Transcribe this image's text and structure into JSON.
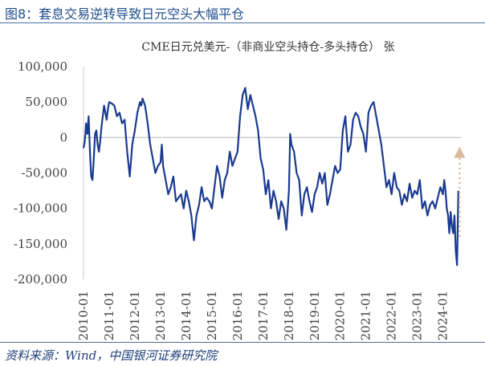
{
  "figure": {
    "title": "图8：套息交易逆转导致日元空头大幅平仓",
    "source": "资料来源：Wind，中国银河证券研究院"
  },
  "chart_data": {
    "type": "line",
    "title": "CME日元兑美元-（非商业空头持仓-多头持仓） 张",
    "ylim": [
      -200000,
      100000
    ],
    "yticks": [
      100000,
      50000,
      0,
      -50000,
      -100000,
      -150000,
      -200000
    ],
    "ytick_labels": [
      "100,000",
      "50,000",
      "0",
      "-50,000",
      "-100,000",
      "-150,000",
      "-200,000"
    ],
    "xlim": [
      2010.0,
      2024.7
    ],
    "xticks": [
      2010,
      2011,
      2012,
      2013,
      2014,
      2015,
      2016,
      2017,
      2018,
      2019,
      2020,
      2021,
      2022,
      2023,
      2024
    ],
    "xtick_labels": [
      "2010-01",
      "2011-01",
      "2012-01",
      "2013-01",
      "2014-01",
      "2015-01",
      "2016-01",
      "2017-01",
      "2018-01",
      "2019-01",
      "2020-01",
      "2021-01",
      "2022-01",
      "2023-01",
      "2024-01"
    ],
    "grid": false,
    "line_color": "#1a3a8f",
    "zero_line_color": "#bbbbbb",
    "arrow_color": "#d9b99b",
    "arrow_annotation": {
      "x": 2024.65,
      "from_y": -140000,
      "to_y": -15000
    },
    "series": [
      {
        "x": [
          2010.0,
          2010.05,
          2010.1,
          2010.15,
          2010.2,
          2010.25,
          2010.3,
          2010.35,
          2010.4,
          2010.45,
          2010.5,
          2010.55,
          2010.6,
          2010.65,
          2010.7,
          2010.75,
          2010.8,
          2010.85,
          2010.9,
          2010.95,
          2011.0,
          2011.1,
          2011.2,
          2011.3,
          2011.4,
          2011.5,
          2011.6,
          2011.7,
          2011.8,
          2011.9,
          2012.0,
          2012.1,
          2012.2,
          2012.25,
          2012.3,
          2012.4,
          2012.5,
          2012.6,
          2012.7,
          2012.8,
          2012.9,
          2013.0,
          2013.05,
          2013.1,
          2013.2,
          2013.3,
          2013.4,
          2013.5,
          2013.6,
          2013.7,
          2013.8,
          2013.9,
          2014.0,
          2014.1,
          2014.2,
          2014.3,
          2014.4,
          2014.5,
          2014.6,
          2014.7,
          2014.8,
          2014.9,
          2015.0,
          2015.1,
          2015.2,
          2015.3,
          2015.4,
          2015.5,
          2015.6,
          2015.7,
          2015.8,
          2015.9,
          2016.0,
          2016.1,
          2016.2,
          2016.3,
          2016.4,
          2016.5,
          2016.6,
          2016.7,
          2016.8,
          2016.9,
          2017.0,
          2017.1,
          2017.2,
          2017.3,
          2017.4,
          2017.5,
          2017.6,
          2017.7,
          2017.8,
          2017.9,
          2018.0,
          2018.05,
          2018.1,
          2018.2,
          2018.3,
          2018.4,
          2018.5,
          2018.6,
          2018.7,
          2018.8,
          2018.9,
          2019.0,
          2019.1,
          2019.2,
          2019.3,
          2019.4,
          2019.5,
          2019.6,
          2019.7,
          2019.8,
          2019.9,
          2020.0,
          2020.1,
          2020.2,
          2020.3,
          2020.4,
          2020.5,
          2020.6,
          2020.7,
          2020.8,
          2020.9,
          2021.0,
          2021.1,
          2021.2,
          2021.3,
          2021.4,
          2021.5,
          2021.6,
          2021.7,
          2021.8,
          2021.9,
          2022.0,
          2022.1,
          2022.2,
          2022.3,
          2022.4,
          2022.5,
          2022.6,
          2022.7,
          2022.8,
          2022.9,
          2023.0,
          2023.1,
          2023.2,
          2023.3,
          2023.4,
          2023.5,
          2023.6,
          2023.7,
          2023.8,
          2023.9,
          2024.0,
          2024.05,
          2024.1,
          2024.15,
          2024.2,
          2024.25,
          2024.3,
          2024.35,
          2024.4,
          2024.45,
          2024.5,
          2024.55,
          2024.6
        ],
        "values": [
          -15000,
          -5000,
          20000,
          5000,
          30000,
          -20000,
          -55000,
          -60000,
          -30000,
          5000,
          10000,
          -10000,
          -20000,
          -5000,
          15000,
          30000,
          45000,
          35000,
          25000,
          40000,
          50000,
          48000,
          45000,
          30000,
          35000,
          20000,
          25000,
          -20000,
          -55000,
          -10000,
          10000,
          35000,
          50000,
          45000,
          55000,
          45000,
          20000,
          -10000,
          -30000,
          -50000,
          -40000,
          -35000,
          -10000,
          -40000,
          -60000,
          -80000,
          -70000,
          -55000,
          -90000,
          -85000,
          -80000,
          -100000,
          -75000,
          -90000,
          -110000,
          -145000,
          -110000,
          -95000,
          -70000,
          -90000,
          -85000,
          -90000,
          -100000,
          -70000,
          -40000,
          -55000,
          -85000,
          -60000,
          -50000,
          -20000,
          -40000,
          -30000,
          -20000,
          30000,
          60000,
          70000,
          40000,
          60000,
          45000,
          30000,
          10000,
          -30000,
          -45000,
          -80000,
          -60000,
          -100000,
          -75000,
          -90000,
          -115000,
          -90000,
          -100000,
          -130000,
          -75000,
          5000,
          -10000,
          -20000,
          -50000,
          -60000,
          -110000,
          -80000,
          -70000,
          -90000,
          -105000,
          -80000,
          -70000,
          -50000,
          -65000,
          -50000,
          -95000,
          -80000,
          -60000,
          -40000,
          -50000,
          -45000,
          10000,
          30000,
          -20000,
          -10000,
          25000,
          35000,
          30000,
          15000,
          5000,
          -20000,
          35000,
          45000,
          50000,
          30000,
          10000,
          -10000,
          -40000,
          -70000,
          -60000,
          -80000,
          -50000,
          -70000,
          -75000,
          -95000,
          -80000,
          -90000,
          -65000,
          -85000,
          -75000,
          -80000,
          -60000,
          -100000,
          -90000,
          -110000,
          -95000,
          -90000,
          -100000,
          -85000,
          -70000,
          -80000,
          -60000,
          -75000,
          -100000,
          -110000,
          -135000,
          -105000,
          -125000,
          -135000,
          -110000,
          -160000,
          -180000,
          -75000
        ]
      }
    ]
  }
}
